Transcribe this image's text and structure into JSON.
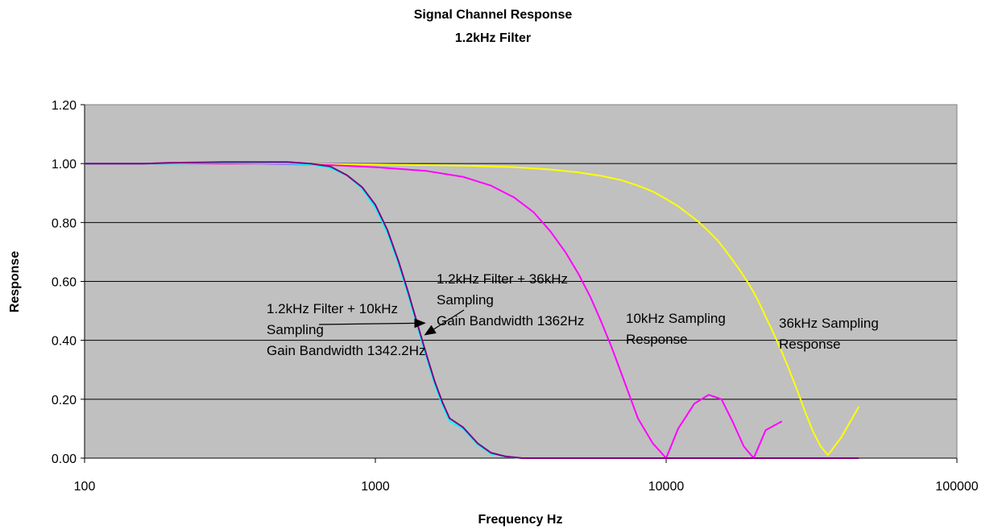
{
  "chart_data": {
    "type": "line",
    "title": "Signal Channel Response",
    "subtitle": "1.2kHz Filter",
    "xlabel": "Frequency Hz",
    "ylabel": "Response",
    "xscale": "log",
    "xlim": [
      100,
      100000
    ],
    "ylim": [
      0,
      1.2
    ],
    "x_ticks": [
      "100",
      "1000",
      "10000",
      "100000"
    ],
    "y_ticks": [
      "0.00",
      "0.20",
      "0.40",
      "0.60",
      "0.80",
      "1.00",
      "1.20"
    ],
    "y_tick_values": [
      0,
      0.2,
      0.4,
      0.6,
      0.8,
      1.0,
      1.2
    ],
    "x_tick_values": [
      100,
      1000,
      10000,
      100000
    ],
    "grid": true,
    "plot_background": "#c0c0c0",
    "legend": "none",
    "series": [
      {
        "color": "#ffff00",
        "points": [
          [
            100,
            1.0
          ],
          [
            200,
            1.0
          ],
          [
            400,
            1.0
          ],
          [
            700,
            0.998
          ],
          [
            1000,
            0.997
          ],
          [
            1500,
            0.995
          ],
          [
            2000,
            0.993
          ],
          [
            3000,
            0.988
          ],
          [
            4000,
            0.98
          ],
          [
            5000,
            0.97
          ],
          [
            6000,
            0.958
          ],
          [
            7000,
            0.944
          ],
          [
            8000,
            0.925
          ],
          [
            9000,
            0.905
          ],
          [
            10000,
            0.88
          ],
          [
            11000,
            0.855
          ],
          [
            12000,
            0.827
          ],
          [
            13000,
            0.8
          ],
          [
            14000,
            0.77
          ],
          [
            15000,
            0.74
          ],
          [
            16000,
            0.705
          ],
          [
            17000,
            0.67
          ],
          [
            18000,
            0.635
          ],
          [
            19000,
            0.6
          ],
          [
            20000,
            0.563
          ],
          [
            21000,
            0.523
          ],
          [
            22000,
            0.48
          ],
          [
            23000,
            0.44
          ],
          [
            24000,
            0.4
          ],
          [
            25000,
            0.36
          ],
          [
            26000,
            0.32
          ],
          [
            28000,
            0.24
          ],
          [
            30000,
            0.16
          ],
          [
            32000,
            0.09
          ],
          [
            34000,
            0.04
          ],
          [
            36000,
            0.01
          ],
          [
            40000,
            0.07
          ],
          [
            46000,
            0.175
          ]
        ]
      },
      {
        "color": "#ff00ff",
        "points": [
          [
            100,
            1.0
          ],
          [
            200,
            1.0
          ],
          [
            400,
            1.0
          ],
          [
            700,
            0.995
          ],
          [
            1000,
            0.988
          ],
          [
            1500,
            0.975
          ],
          [
            2000,
            0.955
          ],
          [
            2500,
            0.925
          ],
          [
            3000,
            0.885
          ],
          [
            3500,
            0.835
          ],
          [
            4000,
            0.77
          ],
          [
            4500,
            0.7
          ],
          [
            5000,
            0.625
          ],
          [
            5500,
            0.545
          ],
          [
            6000,
            0.46
          ],
          [
            6500,
            0.375
          ],
          [
            7000,
            0.29
          ],
          [
            7500,
            0.21
          ],
          [
            8000,
            0.135
          ],
          [
            9000,
            0.05
          ],
          [
            10000,
            0.0
          ],
          [
            11000,
            0.1
          ],
          [
            12500,
            0.185
          ],
          [
            14000,
            0.215
          ],
          [
            15500,
            0.2
          ],
          [
            17000,
            0.12
          ],
          [
            18500,
            0.04
          ],
          [
            20000,
            0.0
          ],
          [
            22000,
            0.095
          ],
          [
            25000,
            0.125
          ]
        ]
      },
      {
        "color": "#00ffff",
        "points": [
          [
            100,
            1.0
          ],
          [
            200,
            1.0
          ],
          [
            300,
            1.003
          ],
          [
            500,
            1.0
          ],
          [
            600,
            0.997
          ],
          [
            700,
            0.985
          ],
          [
            800,
            0.96
          ],
          [
            900,
            0.915
          ],
          [
            1000,
            0.85
          ],
          [
            1100,
            0.765
          ],
          [
            1200,
            0.66
          ],
          [
            1300,
            0.55
          ],
          [
            1400,
            0.44
          ],
          [
            1500,
            0.34
          ],
          [
            1600,
            0.25
          ],
          [
            1700,
            0.18
          ],
          [
            1800,
            0.125
          ],
          [
            2000,
            0.1
          ],
          [
            2250,
            0.045
          ],
          [
            2500,
            0.015
          ],
          [
            2800,
            0.005
          ],
          [
            3200,
            0.0
          ],
          [
            5000,
            0.0
          ],
          [
            10000,
            0.0
          ],
          [
            20000,
            0.0
          ],
          [
            46000,
            0.0
          ]
        ]
      },
      {
        "color": "#800080",
        "points": [
          [
            100,
            1.0
          ],
          [
            160,
            1.0
          ],
          [
            200,
            1.003
          ],
          [
            300,
            1.005
          ],
          [
            500,
            1.005
          ],
          [
            600,
            1.0
          ],
          [
            700,
            0.99
          ],
          [
            800,
            0.96
          ],
          [
            900,
            0.92
          ],
          [
            1000,
            0.86
          ],
          [
            1100,
            0.775
          ],
          [
            1200,
            0.67
          ],
          [
            1300,
            0.56
          ],
          [
            1400,
            0.45
          ],
          [
            1500,
            0.35
          ],
          [
            1600,
            0.26
          ],
          [
            1700,
            0.19
          ],
          [
            1800,
            0.135
          ],
          [
            2000,
            0.105
          ],
          [
            2250,
            0.05
          ],
          [
            2500,
            0.018
          ],
          [
            2800,
            0.006
          ],
          [
            3200,
            0.0
          ],
          [
            5000,
            0.0
          ],
          [
            10000,
            0.0
          ],
          [
            20000,
            0.0
          ],
          [
            46000,
            0.0
          ]
        ]
      }
    ],
    "annotations": [
      {
        "lines": [
          "1.2kHz Filter + 36kHz",
          "Sampling",
          "Gain Bandwidth 1362Hz"
        ],
        "arrow_to": [
          1500,
          0.42
        ]
      },
      {
        "lines": [
          "1.2kHz Filter + 10kHz",
          "Sampling",
          "Gain Bandwidth 1342.2Hz"
        ],
        "arrow_to": [
          1500,
          0.46
        ]
      },
      {
        "lines": [
          "10kHz Sampling",
          "Response"
        ]
      },
      {
        "lines": [
          "36kHz Sampling",
          "Response"
        ]
      }
    ]
  }
}
